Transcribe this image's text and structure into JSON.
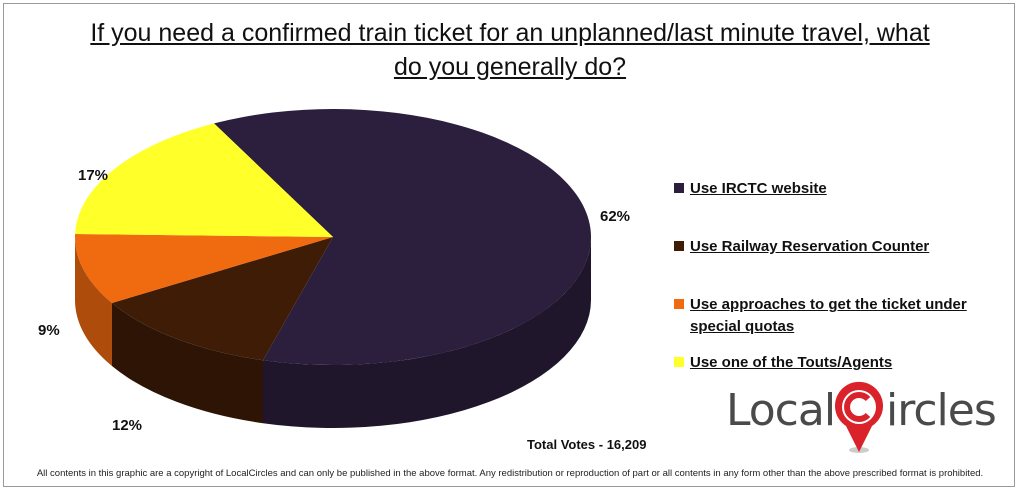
{
  "title": "If you need a confirmed train ticket for an unplanned/last minute travel, what do you generally do?",
  "chart_data": {
    "type": "pie",
    "style": "3d",
    "slices": [
      {
        "label": "Use IRCTC website",
        "value": 62,
        "display": "62%",
        "color": "#2b1f3d"
      },
      {
        "label": "Use Railway Reservation Counter",
        "value": 12,
        "display": "12%",
        "color": "#3f1c06"
      },
      {
        "label": "Use approaches to get the ticket under special quotas",
        "value": 9,
        "display": "9%",
        "color": "#f06a0f"
      },
      {
        "label": "Use one of the Touts/Agents",
        "value": 17,
        "display": "17%",
        "color": "#ffff29"
      }
    ],
    "legend_position": "right"
  },
  "legend": [
    {
      "label": "Use IRCTC website"
    },
    {
      "label": "Use Railway Reservation Counter"
    },
    {
      "label": "Use approaches to get the ticket under special quotas"
    },
    {
      "label": "Use one of the Touts/Agents"
    }
  ],
  "total_votes": "Total Votes - 16,209",
  "logo": {
    "text_left": "Local",
    "text_right": "ircles",
    "icon": "map-pin-c-icon",
    "accent": "#d9222a"
  },
  "footer": "All contents in this graphic are a copyright of LocalCircles and can only be published in the above format. Any redistribution or reproduction of part or all contents in any form other than the above prescribed format is prohibited."
}
